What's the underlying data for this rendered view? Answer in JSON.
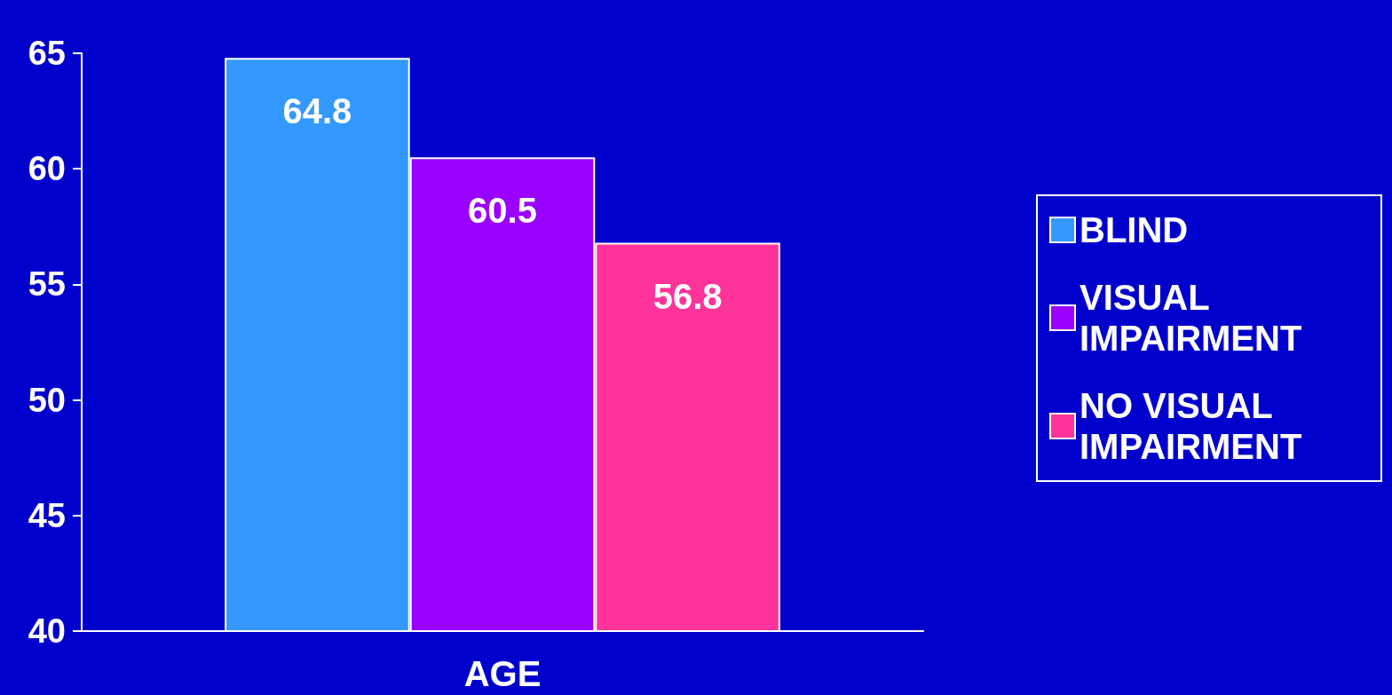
{
  "chart_data": {
    "type": "bar",
    "categories": [
      "AGE"
    ],
    "series": [
      {
        "name": "BLIND",
        "color": "#3399ff",
        "values": [
          64.8
        ]
      },
      {
        "name": "VISUAL IMPAIRMENT",
        "color": "#9900ff",
        "values": [
          60.5
        ]
      },
      {
        "name": "NO VISUAL IMPAIRMENT",
        "color": "#ff3399",
        "values": [
          56.8
        ]
      }
    ],
    "ylim": [
      40,
      65
    ],
    "yticks": [
      40,
      45,
      50,
      55,
      60,
      65
    ],
    "data_labels": true,
    "legend": "right",
    "grid": false
  }
}
